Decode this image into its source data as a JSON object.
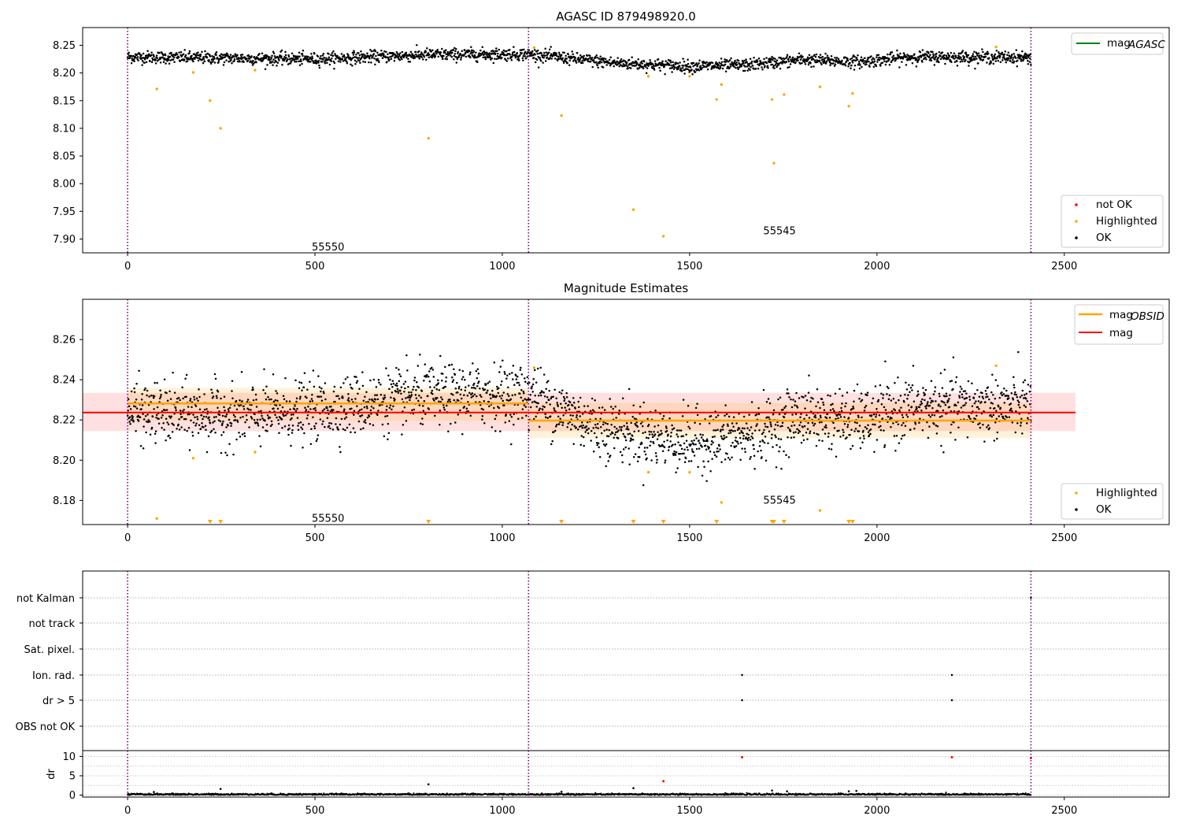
{
  "chart_data": [
    {
      "type": "scatter",
      "title": "AGASC ID 879498920.0",
      "xlim": [
        -120,
        2780
      ],
      "ylim": [
        7.875,
        8.282
      ],
      "xticks": [
        0,
        500,
        1000,
        1500,
        2000,
        2500
      ],
      "yticks": [
        7.9,
        7.95,
        8.0,
        8.05,
        8.1,
        8.15,
        8.2,
        8.25
      ],
      "obs_boundaries": [
        0,
        1070,
        2411
      ],
      "obs_labels": [
        {
          "text": "55550",
          "x": 535,
          "y": 7.885
        },
        {
          "text": "55545",
          "x": 1740,
          "y": 7.914
        }
      ],
      "legend_upper": {
        "location": "upper right",
        "entries": [
          {
            "label": "mag",
            "sub": "AGASC",
            "color": "#008000"
          }
        ]
      },
      "legend_lower": {
        "location": "lower right",
        "entries": [
          {
            "label": "not OK",
            "color": "#ff0000"
          },
          {
            "label": "Highlighted",
            "color": "#ffa500"
          },
          {
            "label": "OK",
            "color": "#000000"
          }
        ]
      },
      "ok_trend": [
        {
          "x": 0,
          "y": 8.229
        },
        {
          "x": 500,
          "y": 8.225
        },
        {
          "x": 800,
          "y": 8.233
        },
        {
          "x": 1070,
          "y": 8.234
        },
        {
          "x": 1300,
          "y": 8.218
        },
        {
          "x": 1500,
          "y": 8.212
        },
        {
          "x": 1650,
          "y": 8.214
        },
        {
          "x": 1800,
          "y": 8.224
        },
        {
          "x": 1950,
          "y": 8.22
        },
        {
          "x": 2100,
          "y": 8.229
        },
        {
          "x": 2411,
          "y": 8.228
        }
      ],
      "highlighted": [
        {
          "x": 78,
          "y": 8.171
        },
        {
          "x": 175,
          "y": 8.201
        },
        {
          "x": 220,
          "y": 8.15
        },
        {
          "x": 248,
          "y": 8.1
        },
        {
          "x": 340,
          "y": 8.205
        },
        {
          "x": 803,
          "y": 8.082
        },
        {
          "x": 1085,
          "y": 8.246
        },
        {
          "x": 1158,
          "y": 8.123
        },
        {
          "x": 1350,
          "y": 7.953
        },
        {
          "x": 1390,
          "y": 8.194
        },
        {
          "x": 1430,
          "y": 7.905
        },
        {
          "x": 1500,
          "y": 8.194
        },
        {
          "x": 1572,
          "y": 8.152
        },
        {
          "x": 1585,
          "y": 8.179
        },
        {
          "x": 1720,
          "y": 8.152
        },
        {
          "x": 1725,
          "y": 8.037
        },
        {
          "x": 1752,
          "y": 8.161
        },
        {
          "x": 1848,
          "y": 8.175
        },
        {
          "x": 1925,
          "y": 8.14
        },
        {
          "x": 1935,
          "y": 8.163
        },
        {
          "x": 2318,
          "y": 8.247
        }
      ]
    },
    {
      "type": "scatter",
      "title": "Magnitude Estimates",
      "xlim": [
        -120,
        2780
      ],
      "ylim": [
        8.168,
        8.28
      ],
      "xticks": [
        0,
        500,
        1000,
        1500,
        2000,
        2500
      ],
      "yticks": [
        8.18,
        8.2,
        8.22,
        8.24,
        8.26
      ],
      "obs_boundaries": [
        0,
        1070,
        2411
      ],
      "obs_labels": [
        {
          "text": "55550",
          "x": 535,
          "y": 8.171
        },
        {
          "text": "55545",
          "x": 1740,
          "y": 8.18
        }
      ],
      "legend_upper": {
        "location": "upper right",
        "entries": [
          {
            "label": "mag",
            "sub": "OBSID",
            "color": "#ffa500"
          },
          {
            "label": "mag",
            "color": "#ff0000"
          }
        ]
      },
      "legend_lower": {
        "location": "lower right",
        "entries": [
          {
            "label": "Highlighted",
            "color": "#ffa500"
          },
          {
            "label": "OK",
            "color": "#000000"
          }
        ]
      },
      "mag": {
        "value": 8.2237,
        "band": [
          8.2145,
          8.2335
        ],
        "x_range": [
          -120,
          2530
        ]
      },
      "mag_obsid": [
        {
          "x0": 0,
          "x1": 1070,
          "value": 8.2282,
          "band": [
            8.2195,
            8.236
          ]
        },
        {
          "x0": 1070,
          "x1": 2411,
          "value": 8.2197,
          "band": [
            8.211,
            8.2285
          ]
        }
      ],
      "ok_trend": [
        {
          "x": 0,
          "y": 8.224
        },
        {
          "x": 300,
          "y": 8.222
        },
        {
          "x": 500,
          "y": 8.225
        },
        {
          "x": 800,
          "y": 8.232
        },
        {
          "x": 1070,
          "y": 8.233
        },
        {
          "x": 1250,
          "y": 8.217
        },
        {
          "x": 1500,
          "y": 8.209
        },
        {
          "x": 1650,
          "y": 8.212
        },
        {
          "x": 1800,
          "y": 8.222
        },
        {
          "x": 1950,
          "y": 8.219
        },
        {
          "x": 2100,
          "y": 8.226
        },
        {
          "x": 2411,
          "y": 8.227
        }
      ],
      "highlighted": [
        {
          "x": 78,
          "y": 8.171
        },
        {
          "x": 175,
          "y": 8.201
        },
        {
          "x": 340,
          "y": 8.204
        },
        {
          "x": 1085,
          "y": 8.246
        },
        {
          "x": 1390,
          "y": 8.194
        },
        {
          "x": 1500,
          "y": 8.194
        },
        {
          "x": 1585,
          "y": 8.179
        },
        {
          "x": 1848,
          "y": 8.175
        },
        {
          "x": 2318,
          "y": 8.247
        }
      ],
      "below_range_markers": [
        220,
        248,
        803,
        1158,
        1350,
        1430,
        1572,
        1720,
        1725,
        1752,
        1925,
        1935
      ]
    },
    {
      "type": "scatter",
      "title": "",
      "xlim": [
        -120,
        2780
      ],
      "xticks": [
        0,
        500,
        1000,
        1500,
        2000,
        2500
      ],
      "obs_boundaries": [
        0,
        1070,
        2411
      ],
      "flag_rows": [
        "not Kalman",
        "not track",
        "Sat. pixel.",
        "Ion. rad.",
        "dr > 5",
        "OBS not OK"
      ],
      "flag_points": [
        {
          "row": "Ion. rad.",
          "x": 1640
        },
        {
          "row": "Ion. rad.",
          "x": 2200
        },
        {
          "row": "dr > 5",
          "x": 1640
        },
        {
          "row": "dr > 5",
          "x": 2200
        },
        {
          "row": "not Kalman",
          "x": 2411
        }
      ],
      "dr_axis": {
        "ylabel": "dr",
        "ylim": [
          -0.5,
          11.5
        ],
        "yticks": [
          0,
          5,
          10
        ]
      },
      "dr_baseline": 0.2,
      "dr_points_ok": [
        {
          "x": 248,
          "y": 1.6
        },
        {
          "x": 803,
          "y": 2.8
        },
        {
          "x": 1350,
          "y": 1.8
        },
        {
          "x": 1158,
          "y": 0.9
        },
        {
          "x": 1720,
          "y": 1.2
        },
        {
          "x": 1760,
          "y": 1.0
        },
        {
          "x": 1925,
          "y": 1.0
        },
        {
          "x": 1945,
          "y": 1.1
        },
        {
          "x": 70,
          "y": 0.8
        }
      ],
      "dr_points_bad": [
        {
          "x": 1430,
          "y": 3.6
        },
        {
          "x": 1640,
          "y": 9.8
        },
        {
          "x": 2200,
          "y": 9.8
        },
        {
          "x": 2411,
          "y": 9.6
        }
      ]
    }
  ]
}
